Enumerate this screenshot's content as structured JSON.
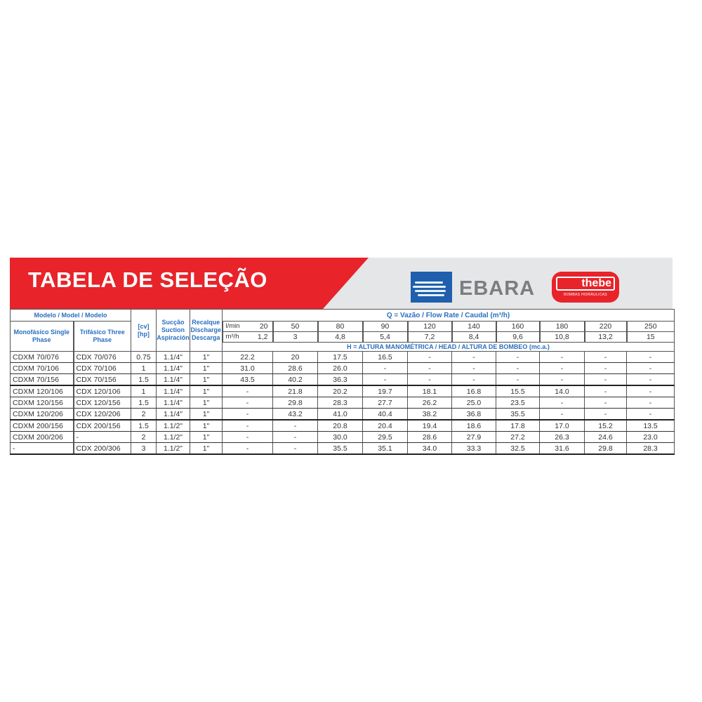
{
  "banner": {
    "title": "TABELA DE SELEÇÃO",
    "brand1": "EBARA",
    "brand2": "thebe",
    "brand2_sub": "BOMBAS HIDRÁULICAS",
    "accent": "#e8232a",
    "brand_blue": "#1f5fae"
  },
  "table": {
    "model_header": "Modelo / Model / Modelo",
    "mono_header": "Monofásico Single Phase",
    "tri_header": "Trifásico Three Phase",
    "power_header": "[cv] [hp]",
    "suction_header": "Sucção Suction Aspiración",
    "discharge_header": "Recalque Discharge Descarga",
    "flow_header": "Q = Vazão / Flow Rate / Caudal  (m³/h)",
    "lmin_label": "l/min",
    "m3h_label": "m³/h",
    "head_header": "H = ALTURA MANOMÉTRICA / HEAD / ALTURA DE BOMBEO (mc.a.)",
    "flow_lmin": [
      "20",
      "50",
      "80",
      "90",
      "120",
      "140",
      "160",
      "180",
      "220",
      "250"
    ],
    "flow_m3h": [
      "1,2",
      "3",
      "4,8",
      "5,4",
      "7,2",
      "8,4",
      "9,6",
      "10,8",
      "13,2",
      "15"
    ],
    "rows": [
      {
        "mono": "CDXM 70/076",
        "tri": "CDX 70/076",
        "cv": "0.75",
        "suc": "1.1/4\"",
        "dis": "1\"",
        "h": [
          "22.2",
          "20",
          "17.5",
          "16.5",
          "-",
          "-",
          "-",
          "-",
          "-",
          "-"
        ]
      },
      {
        "mono": "CDXM 70/106",
        "tri": "CDX 70/106",
        "cv": "1",
        "suc": "1.1/4\"",
        "dis": "1\"",
        "h": [
          "31.0",
          "28.6",
          "26.0",
          "-",
          "-",
          "-",
          "-",
          "-",
          "-",
          "-"
        ]
      },
      {
        "mono": "CDXM 70/156",
        "tri": "CDX 70/156",
        "cv": "1.5",
        "suc": "1.1/4\"",
        "dis": "1\"",
        "h": [
          "43.5",
          "40.2",
          "36.3",
          "-",
          "-",
          "-",
          "-",
          "-",
          "-",
          "-"
        ]
      },
      {
        "mono": "CDXM 120/106",
        "tri": "CDX 120/106",
        "cv": "1",
        "suc": "1.1/4\"",
        "dis": "1\"",
        "h": [
          "-",
          "21.8",
          "20.2",
          "19.7",
          "18.1",
          "16.8",
          "15.5",
          "14.0",
          "-",
          "-"
        ]
      },
      {
        "mono": "CDXM 120/156",
        "tri": "CDX 120/156",
        "cv": "1.5",
        "suc": "1.1/4\"",
        "dis": "1\"",
        "h": [
          "-",
          "29.8",
          "28.3",
          "27.7",
          "26.2",
          "25.0",
          "23.5",
          "-",
          "-",
          "-"
        ]
      },
      {
        "mono": "CDXM 120/206",
        "tri": "CDX 120/206",
        "cv": "2",
        "suc": "1.1/4\"",
        "dis": "1\"",
        "h": [
          "-",
          "43.2",
          "41.0",
          "40.4",
          "38.2",
          "36.8",
          "35.5",
          "-",
          "-",
          "-"
        ]
      },
      {
        "mono": "CDXM 200/156",
        "tri": "CDX 200/156",
        "cv": "1.5",
        "suc": "1.1/2\"",
        "dis": "1\"",
        "h": [
          "-",
          "-",
          "20.8",
          "20.4",
          "19.4",
          "18.6",
          "17.8",
          "17.0",
          "15.2",
          "13.5"
        ]
      },
      {
        "mono": "CDXM 200/206",
        "tri": "-",
        "cv": "2",
        "suc": "1.1/2\"",
        "dis": "1\"",
        "h": [
          "-",
          "-",
          "30.0",
          "29.5",
          "28.6",
          "27.9",
          "27.2",
          "26.3",
          "24.6",
          "23.0"
        ]
      },
      {
        "mono": "-",
        "tri": "CDX 200/306",
        "cv": "3",
        "suc": "1.1/2\"",
        "dis": "1\"",
        "h": [
          "-",
          "-",
          "35.5",
          "35.1",
          "34.0",
          "33.3",
          "32.5",
          "31.6",
          "29.8",
          "28.3"
        ]
      }
    ]
  }
}
